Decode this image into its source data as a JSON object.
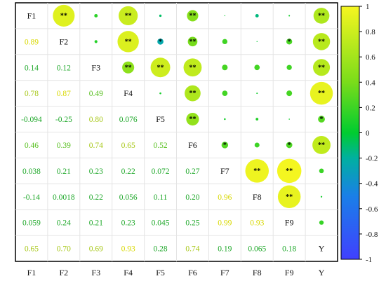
{
  "chart_data": {
    "type": "heatmap",
    "variables": [
      "F1",
      "F2",
      "F3",
      "F4",
      "F5",
      "F6",
      "F7",
      "F8",
      "F9",
      "Y"
    ],
    "correlation_matrix": [
      [
        1,
        0.89,
        0.14,
        0.78,
        -0.094,
        0.46,
        0.038,
        -0.14,
        0.059,
        0.65
      ],
      [
        0.89,
        1,
        0.12,
        0.87,
        -0.25,
        0.39,
        0.21,
        0.0018,
        0.24,
        0.7
      ],
      [
        0.14,
        0.12,
        1,
        0.49,
        0.8,
        0.74,
        0.23,
        0.22,
        0.21,
        0.69
      ],
      [
        0.78,
        0.87,
        0.49,
        1,
        0.076,
        0.65,
        0.22,
        0.056,
        0.23,
        0.93
      ],
      [
        -0.094,
        -0.25,
        0.8,
        0.076,
        1,
        0.52,
        0.072,
        0.11,
        0.045,
        0.28
      ],
      [
        0.46,
        0.39,
        0.74,
        0.65,
        0.52,
        1,
        0.27,
        0.2,
        0.25,
        0.74
      ],
      [
        0.038,
        0.21,
        0.23,
        0.22,
        0.072,
        0.27,
        1,
        0.96,
        0.99,
        0.19
      ],
      [
        -0.14,
        0.0018,
        0.22,
        0.056,
        0.11,
        0.2,
        0.96,
        1,
        0.93,
        0.065
      ],
      [
        0.059,
        0.24,
        0.21,
        0.23,
        0.045,
        0.25,
        0.99,
        0.93,
        1,
        0.18
      ],
      [
        0.65,
        0.7,
        0.69,
        0.93,
        0.28,
        0.74,
        0.19,
        0.065,
        0.18,
        1
      ]
    ],
    "lower_labels": [
      [],
      [
        "0.89"
      ],
      [
        "0.14",
        "0.12"
      ],
      [
        "0.78",
        "0.87",
        "0.49"
      ],
      [
        "-0.094",
        "-0.25",
        "0.80",
        "0.076"
      ],
      [
        "0.46",
        "0.39",
        "0.74",
        "0.65",
        "0.52"
      ],
      [
        "0.038",
        "0.21",
        "0.23",
        "0.22",
        "0.072",
        "0.27"
      ],
      [
        "-0.14",
        "0.0018",
        "0.22",
        "0.056",
        "0.11",
        "0.20",
        "0.96"
      ],
      [
        "0.059",
        "0.24",
        "0.21",
        "0.23",
        "0.045",
        "0.25",
        "0.99",
        "0.93"
      ],
      [
        "0.65",
        "0.70",
        "0.69",
        "0.93",
        "0.28",
        "0.74",
        "0.19",
        "0.065",
        "0.18"
      ]
    ],
    "significance": [
      [
        "",
        "**",
        "",
        "**",
        "",
        "**",
        "",
        "",
        "",
        "**"
      ],
      [
        "",
        "",
        "",
        "**",
        "*",
        "**",
        "",
        "",
        "*",
        "**"
      ],
      [
        "",
        "",
        "",
        "**",
        "**",
        "**",
        "",
        "",
        "",
        "**"
      ],
      [
        "",
        "",
        "",
        "",
        "",
        "**",
        "",
        "",
        "",
        "**"
      ],
      [
        "",
        "",
        "",
        "",
        "",
        "**",
        "",
        "",
        "",
        "*"
      ],
      [
        "",
        "",
        "",
        "",
        "",
        "",
        "*",
        "",
        "*",
        "**"
      ],
      [
        "",
        "",
        "",
        "",
        "",
        "",
        "",
        "**",
        "**",
        ""
      ],
      [
        "",
        "",
        "",
        "",
        "",
        "",
        "",
        "",
        "**",
        ""
      ],
      [
        "",
        "",
        "",
        "",
        "",
        "",
        "",
        "",
        "",
        ""
      ],
      [
        "",
        "",
        "",
        "",
        "",
        "",
        "",
        "",
        "",
        ""
      ]
    ],
    "colorbar": {
      "range": [
        -1,
        1
      ],
      "ticks": [
        "1",
        "0.8",
        "0.6",
        "0.4",
        "0.2",
        "0",
        "-0.2",
        "-0.4",
        "-0.6",
        "-0.8",
        "-1"
      ],
      "colors": [
        "#4040ff",
        "#0a9fd0",
        "#00d200",
        "#f6f620"
      ]
    },
    "layout": "upper triangle: circles sized/colored by r; lower triangle: r values colored; diagonal: variable names"
  }
}
